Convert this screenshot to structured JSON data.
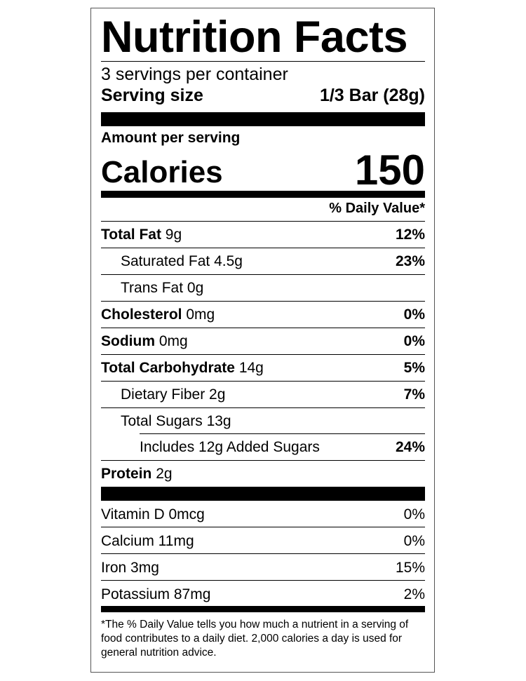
{
  "title": "Nutrition Facts",
  "servings_per_container": "3 servings per container",
  "serving_size": {
    "label": "Serving size",
    "value": "1/3 Bar (28g)"
  },
  "amount_per_serving": "Amount per serving",
  "calories": {
    "label": "Calories",
    "value": "150"
  },
  "daily_value_header": "% Daily Value*",
  "nutrients": [
    {
      "name": "Total Fat",
      "amount": "9g",
      "dv": "12%",
      "level": 0,
      "bold": true
    },
    {
      "name": "Saturated Fat",
      "amount": "4.5g",
      "dv": "23%",
      "level": 1,
      "bold": false
    },
    {
      "name": "Trans Fat",
      "amount": "0g",
      "dv": "",
      "level": 1,
      "bold": false
    },
    {
      "name": "Cholesterol",
      "amount": "0mg",
      "dv": "0%",
      "level": 0,
      "bold": true
    },
    {
      "name": "Sodium",
      "amount": "0mg",
      "dv": "0%",
      "level": 0,
      "bold": true
    },
    {
      "name": "Total Carbohydrate",
      "amount": "14g",
      "dv": "5%",
      "level": 0,
      "bold": true
    },
    {
      "name": "Dietary Fiber",
      "amount": "2g",
      "dv": "7%",
      "level": 1,
      "bold": false
    },
    {
      "name": "Total Sugars",
      "amount": "13g",
      "dv": "",
      "level": 1,
      "bold": false
    },
    {
      "name": "Includes 12g Added Sugars",
      "amount": "",
      "dv": "24%",
      "level": 2,
      "bold": false
    },
    {
      "name": "Protein",
      "amount": "2g",
      "dv": "",
      "level": 0,
      "bold": true
    }
  ],
  "vitamins": [
    {
      "text": "Vitamin D 0mcg",
      "dv": "0%"
    },
    {
      "text": "Calcium 11mg",
      "dv": "0%"
    },
    {
      "text": "Iron 3mg",
      "dv": "15%"
    },
    {
      "text": "Potassium 87mg",
      "dv": "2%"
    }
  ],
  "footnote": "*The % Daily Value tells you how much a nutrient in a serving of food contributes to a daily diet. 2,000 calories a day is used for general nutrition advice."
}
